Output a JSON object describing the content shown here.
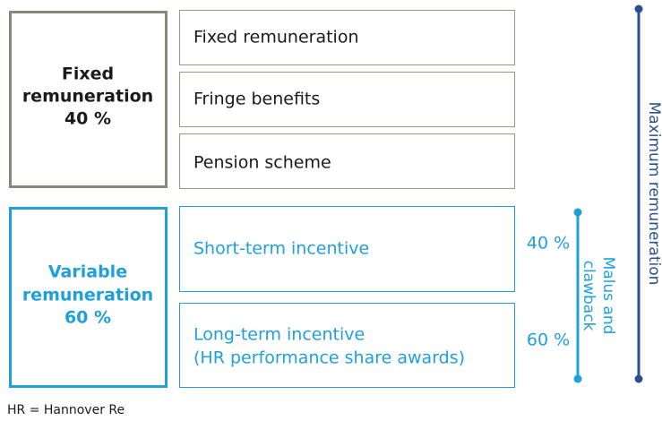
{
  "fixed": {
    "summary": [
      "Fixed",
      "remuneration",
      "40 %"
    ],
    "components": [
      "Fixed remuneration",
      "Fringe benefits",
      "Pension scheme"
    ]
  },
  "variable": {
    "summary": [
      "Variable",
      "remuneration",
      "60 %"
    ],
    "components": [
      {
        "lines": [
          "Short-term incentive"
        ],
        "share": "40 %"
      },
      {
        "lines": [
          "Long-term incentive",
          "(HR performance share awards)"
        ],
        "share": "60 %"
      }
    ],
    "malus_label": [
      "Malus and",
      "clawback"
    ]
  },
  "maximum_label": "Maximum remuneration",
  "footnote": "HR = Hannover Re"
}
